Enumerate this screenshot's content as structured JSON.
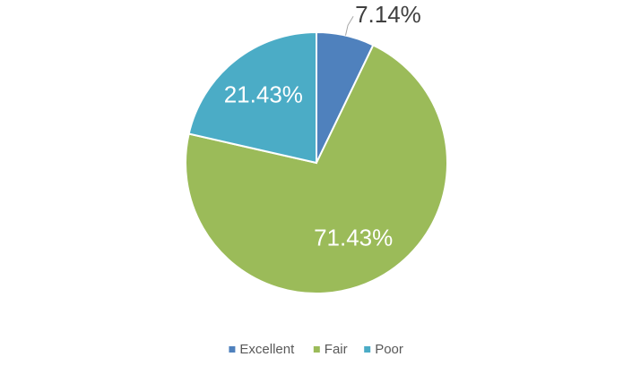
{
  "chart_data": {
    "type": "pie",
    "categories": [
      "Excellent",
      "Fair",
      "Poor"
    ],
    "values": [
      7.14,
      71.43,
      21.43
    ],
    "value_labels": [
      "7.14%",
      "71.43%",
      "21.43%"
    ],
    "colors": [
      "#4f81bd",
      "#9bbb59",
      "#4bacc6"
    ],
    "legend": "bottom"
  }
}
